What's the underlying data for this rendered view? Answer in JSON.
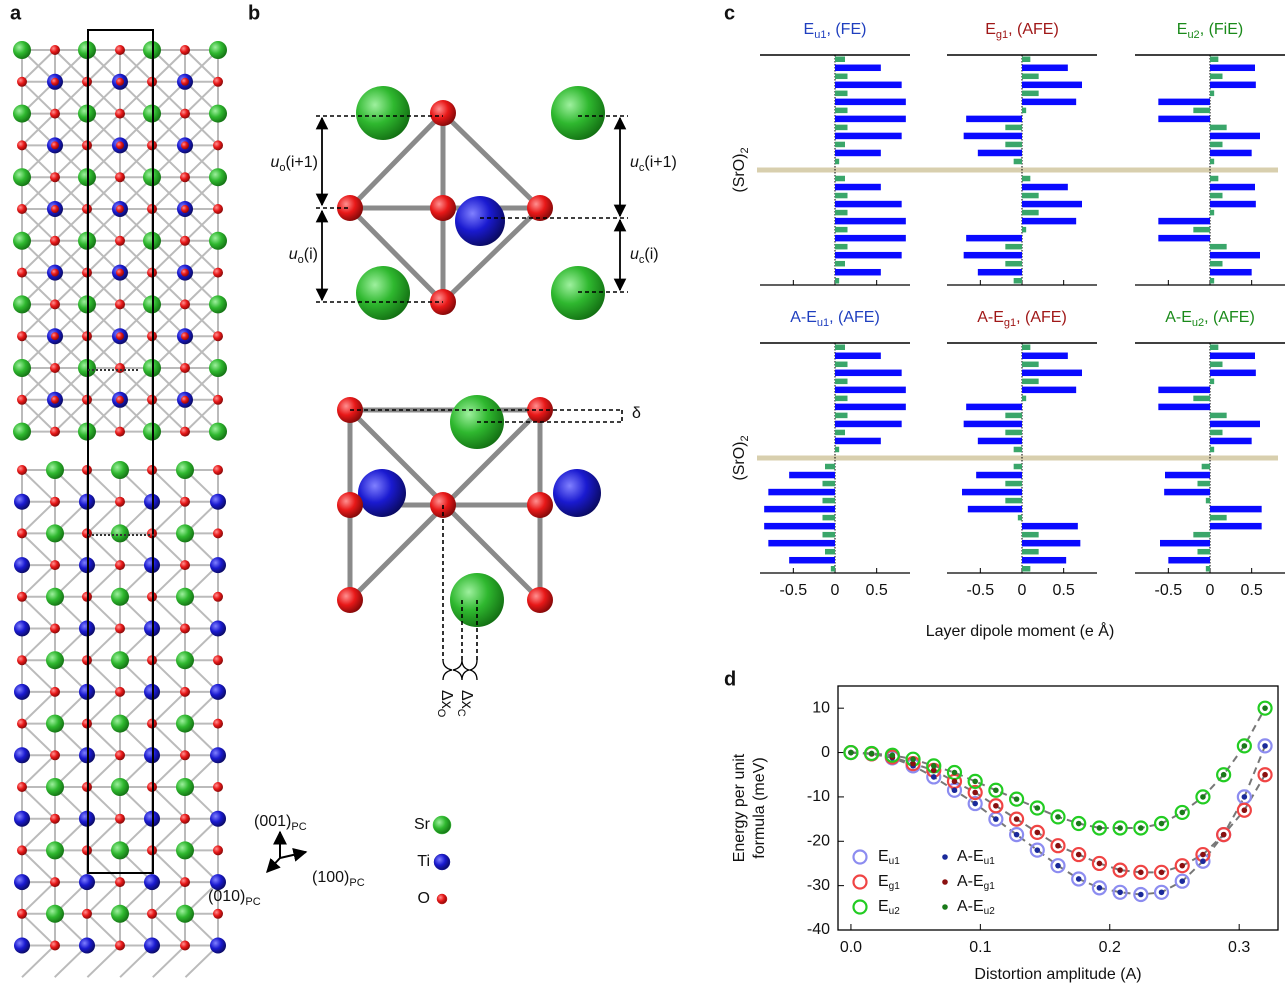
{
  "panel_labels": [
    "a",
    "b",
    "c",
    "d"
  ],
  "panel_a": {
    "legend": [
      {
        "label": "Sr",
        "color": "#3cc83c"
      },
      {
        "label": "Ti",
        "color": "#1a1aa8"
      },
      {
        "label": "O",
        "color": "#d81818"
      }
    ],
    "axes": [
      {
        "base": "(001)",
        "sub": "PC"
      },
      {
        "base": "(100)",
        "sub": "PC"
      },
      {
        "base": "(010)",
        "sub": "PC"
      }
    ]
  },
  "panel_b": {
    "labels": [
      {
        "base": "u",
        "sub": "o",
        "rest": "(i+1)"
      },
      {
        "base": "u",
        "sub": "o",
        "rest": "(i)"
      },
      {
        "base": "u",
        "sub": "c",
        "rest": "(i+1)"
      },
      {
        "base": "u",
        "sub": "c",
        "rest": "(i)"
      }
    ],
    "delta": "δ",
    "dx": [
      {
        "base": "Δx",
        "sub": "O"
      },
      {
        "base": "Δx",
        "sub": "C"
      }
    ]
  },
  "panel_c": {
    "xlabel": "Layer dipole moment (e Å)",
    "ylabel": {
      "base": "(SrO)",
      "sub": "2"
    },
    "divider_color": "#d8cfae"
  },
  "chart_data": [
    {
      "type": "bar",
      "orientation": "horizontal",
      "title": {
        "base": "E",
        "sub": "u1",
        "rest": ", (FE)"
      },
      "title_color": "#1f3fbf",
      "xlim": [
        -0.9,
        0.9
      ],
      "xticks": [
        -0.5,
        0,
        0.5
      ],
      "series": [
        {
          "color": "#3aa66a",
          "values": [
            0.12,
            0.15,
            0.15,
            0.15,
            0.15,
            0.12,
            0.05,
            0.12,
            0.15,
            0.15,
            0.15,
            0.15,
            0.12,
            0.05
          ]
        },
        {
          "color": "#0a0aff",
          "values": [
            0.55,
            0.8,
            0.85,
            0.85,
            0.8,
            0.55,
            0.55,
            0.8,
            0.85,
            0.85,
            0.8,
            0.55
          ]
        }
      ]
    },
    {
      "type": "bar",
      "orientation": "horizontal",
      "title": {
        "base": "E",
        "sub": "g1",
        "rest": ", (AFE)"
      },
      "title_color": "#a01818",
      "xlim": [
        -0.9,
        0.9
      ],
      "xticks": [
        -0.5,
        0,
        0.5
      ],
      "series": [
        {
          "color": "#3aa66a",
          "values": [
            0.1,
            0.2,
            0.2,
            0.05,
            -0.2,
            -0.2,
            -0.1,
            0.1,
            0.2,
            0.2,
            0.05,
            -0.2,
            -0.2,
            -0.1
          ]
        },
        {
          "color": "#0a0aff",
          "values": [
            0.55,
            0.72,
            0.65,
            -0.67,
            -0.7,
            -0.53,
            0.55,
            0.72,
            0.65,
            -0.67,
            -0.7,
            -0.53
          ]
        }
      ]
    },
    {
      "type": "bar",
      "orientation": "horizontal",
      "title": {
        "base": "E",
        "sub": "u2",
        "rest": ", (FiE)"
      },
      "title_color": "#1a8a1a",
      "xlim": [
        -0.9,
        0.9
      ],
      "xticks": [
        -0.5,
        0,
        0.5
      ],
      "series": [
        {
          "color": "#3aa66a",
          "values": [
            0.1,
            0.15,
            0.05,
            -0.2,
            0.2,
            0.15,
            0.05,
            0.1,
            0.15,
            0.05,
            -0.2,
            0.2,
            0.15,
            0.05
          ]
        },
        {
          "color": "#0a0aff",
          "values": [
            0.54,
            0.55,
            -0.62,
            -0.62,
            0.6,
            0.5,
            0.54,
            0.55,
            -0.62,
            -0.62,
            0.6,
            0.5
          ]
        }
      ]
    },
    {
      "type": "bar",
      "orientation": "horizontal",
      "title": {
        "base": "A-E",
        "sub": "u1",
        "rest": ", (AFE)"
      },
      "title_color": "#1f3fbf",
      "xlim": [
        -0.9,
        0.9
      ],
      "xticks": [
        -0.5,
        0,
        0.5
      ],
      "series": [
        {
          "color": "#3aa66a",
          "values": [
            0.12,
            0.15,
            0.15,
            0.15,
            0.15,
            0.12,
            0.05,
            -0.12,
            -0.15,
            -0.15,
            -0.15,
            -0.15,
            -0.12,
            -0.05
          ]
        },
        {
          "color": "#0a0aff",
          "values": [
            0.55,
            0.8,
            0.85,
            0.85,
            0.8,
            0.55,
            -0.55,
            -0.8,
            -0.85,
            -0.85,
            -0.8,
            -0.55
          ]
        }
      ]
    },
    {
      "type": "bar",
      "orientation": "horizontal",
      "title": {
        "base": "A-E",
        "sub": "g1",
        "rest": ", (AFE)"
      },
      "title_color": "#a01818",
      "xlim": [
        -0.9,
        0.9
      ],
      "xticks": [
        -0.5,
        0,
        0.5
      ],
      "series": [
        {
          "color": "#3aa66a",
          "values": [
            0.1,
            0.2,
            0.2,
            0.05,
            -0.2,
            -0.2,
            -0.1,
            -0.1,
            -0.2,
            -0.2,
            -0.05,
            0.2,
            0.2,
            0.1
          ]
        },
        {
          "color": "#0a0aff",
          "values": [
            0.55,
            0.72,
            0.65,
            -0.67,
            -0.7,
            -0.53,
            -0.55,
            -0.72,
            -0.65,
            0.67,
            0.7,
            0.53
          ]
        }
      ]
    },
    {
      "type": "bar",
      "orientation": "horizontal",
      "title": {
        "base": "A-E",
        "sub": "u2",
        "rest": ", (AFE)"
      },
      "title_color": "#1a8a1a",
      "xlim": [
        -0.9,
        0.9
      ],
      "xticks": [
        -0.5,
        0,
        0.5
      ],
      "series": [
        {
          "color": "#3aa66a",
          "values": [
            0.1,
            0.15,
            0.05,
            -0.2,
            0.2,
            0.15,
            0.05,
            -0.1,
            -0.15,
            -0.05,
            0.2,
            -0.2,
            -0.15,
            -0.05
          ]
        },
        {
          "color": "#0a0aff",
          "values": [
            0.54,
            0.55,
            -0.62,
            -0.62,
            0.6,
            0.5,
            -0.54,
            -0.55,
            0.62,
            0.62,
            -0.6,
            -0.5
          ]
        }
      ]
    },
    {
      "type": "scatter",
      "xlabel": "Distortion amplitude (A)",
      "ylabel": [
        "Energy per unit",
        "formula (meV)"
      ],
      "xlim": [
        -0.01,
        0.33
      ],
      "ylim": [
        -40,
        15
      ],
      "xticks": [
        {
          "value": 0,
          "label": "0.0"
        },
        0.1,
        0.2,
        0.3
      ],
      "yticks": [
        -40,
        -30,
        -20,
        -10,
        0,
        10
      ],
      "fit_color": "#777777",
      "x": [
        0,
        0.016,
        0.032,
        0.048,
        0.064,
        0.08,
        0.096,
        0.112,
        0.128,
        0.144,
        0.16,
        0.176,
        0.192,
        0.208,
        0.224,
        0.24,
        0.256,
        0.272,
        0.288,
        0.304,
        0.32
      ],
      "series": [
        {
          "name": "E",
          "name_sub": "u1",
          "marker": "open",
          "color": "#8c8cf0",
          "values": [
            0,
            -0.3,
            -1.2,
            -3,
            -5.5,
            -8.5,
            -11.5,
            -15,
            -18.5,
            -22,
            -25.5,
            -28.5,
            -30.5,
            -31.5,
            -32,
            -31.5,
            -29,
            -24.5,
            -18.5,
            -10,
            1.5
          ]
        },
        {
          "name": "E",
          "name_sub": "g1",
          "marker": "open",
          "color": "#f04444",
          "values": [
            0,
            -0.3,
            -1,
            -2.5,
            -4,
            -6.5,
            -9,
            -12,
            -15,
            -18,
            -21,
            -23,
            -25,
            -26.5,
            -27,
            -27,
            -25.5,
            -23,
            -18.5,
            -13,
            -5
          ]
        },
        {
          "name": "E",
          "name_sub": "u2",
          "marker": "open",
          "color": "#22cc22",
          "values": [
            0,
            -0.2,
            -0.6,
            -1.5,
            -3,
            -4.5,
            -6.5,
            -8.5,
            -10.5,
            -12.5,
            -14.5,
            -16,
            -17,
            -17,
            -17,
            -16,
            -13.5,
            -10,
            -5,
            1.5,
            10
          ]
        },
        {
          "name": "A-E",
          "name_sub": "u1",
          "marker": "dot",
          "color": "#1a2a9a",
          "values": [
            0,
            -0.3,
            -1.2,
            -3,
            -5.5,
            -8.5,
            -11.5,
            -15,
            -18.5,
            -22,
            -25.5,
            -28.5,
            -30.5,
            -31.5,
            -32,
            -31.5,
            -29,
            -24.5,
            -18.5,
            -10,
            1.5
          ]
        },
        {
          "name": "A-E",
          "name_sub": "g1",
          "marker": "dot",
          "color": "#8a1010",
          "values": [
            0,
            -0.3,
            -1,
            -2.5,
            -4,
            -6.5,
            -9,
            -12,
            -15,
            -18,
            -21,
            -23,
            -25,
            -26.5,
            -27,
            -27,
            -25.5,
            -23,
            -18.5,
            -13,
            -5
          ]
        },
        {
          "name": "A-E",
          "name_sub": "u2",
          "marker": "dot",
          "color": "#1a7a1a",
          "values": [
            0,
            -0.2,
            -0.6,
            -1.5,
            -3,
            -4.5,
            -6.5,
            -8.5,
            -10.5,
            -12.5,
            -14.5,
            -16,
            -17,
            -17,
            -17,
            -16,
            -13.5,
            -10,
            -5,
            1.5,
            10
          ]
        }
      ]
    }
  ]
}
